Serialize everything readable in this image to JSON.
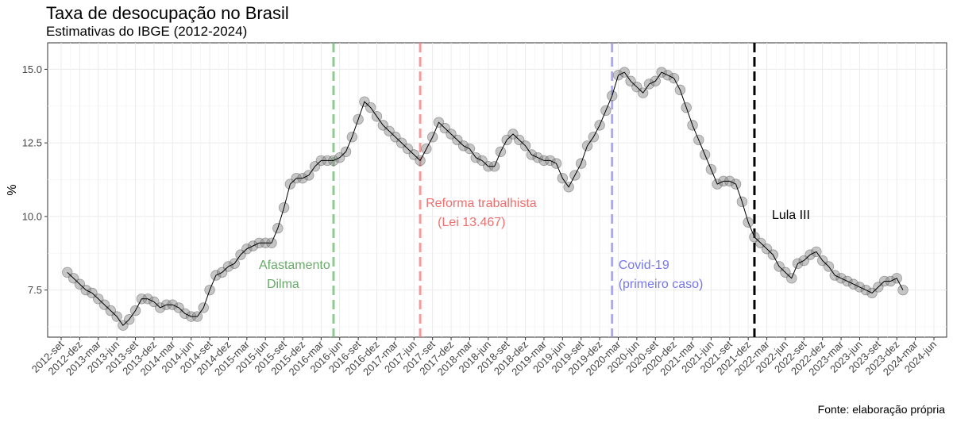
{
  "chart_data": {
    "type": "line",
    "title": "Taxa de desocupação no Brasil",
    "subtitle": "Estimativas do IBGE (2012-2024)",
    "xlabel": "",
    "ylabel": "%",
    "source": "Fonte: elaboração própria",
    "ylim": [
      5.9,
      15.9
    ],
    "yticks": [
      7.5,
      10.0,
      12.5,
      15.0
    ],
    "ytick_labels": [
      "7.5",
      "10.0",
      "12.5",
      "15.0"
    ],
    "grid": true,
    "point_color": "#808080",
    "line_color": "#000000",
    "x_ticks": [
      "2012-set",
      "2012-dez",
      "2013-mar",
      "2013-jun",
      "2013-set",
      "2013-dez",
      "2014-mar",
      "2014-jun",
      "2014-set",
      "2014-dez",
      "2015-mar",
      "2015-jun",
      "2015-set",
      "2015-dez",
      "2016-mar",
      "2016-jun",
      "2016-set",
      "2016-dez",
      "2017-mar",
      "2017-jun",
      "2017-set",
      "2017-dez",
      "2018-mar",
      "2018-jun",
      "2018-set",
      "2018-dez",
      "2019-mar",
      "2019-jun",
      "2019-set",
      "2019-dez",
      "2020-mar",
      "2020-jun",
      "2020-set",
      "2020-dez",
      "2021-mar",
      "2021-jun",
      "2021-set",
      "2021-dez",
      "2022-mar",
      "2022-jun",
      "2022-set",
      "2022-dez",
      "2023-mar",
      "2023-jun",
      "2023-set",
      "2023-dez",
      "2024-mar",
      "2024-jun"
    ],
    "x_start": "2012-10",
    "series": [
      {
        "name": "",
        "values": [
          8.1,
          7.9,
          7.7,
          7.5,
          7.4,
          7.2,
          7.0,
          6.8,
          6.6,
          6.3,
          6.5,
          6.8,
          7.2,
          7.2,
          7.1,
          6.9,
          7.0,
          7.0,
          6.9,
          6.7,
          6.6,
          6.6,
          6.9,
          7.5,
          8.0,
          8.1,
          8.3,
          8.4,
          8.7,
          8.9,
          9.0,
          9.1,
          9.1,
          9.1,
          9.6,
          10.3,
          11.1,
          11.3,
          11.3,
          11.4,
          11.7,
          11.9,
          11.9,
          11.9,
          12.0,
          12.2,
          12.7,
          13.3,
          13.9,
          13.7,
          13.4,
          13.1,
          12.9,
          12.7,
          12.5,
          12.3,
          12.1,
          11.9,
          12.3,
          12.7,
          13.2,
          13.0,
          12.8,
          12.6,
          12.4,
          12.3,
          12.0,
          11.9,
          11.7,
          11.7,
          12.2,
          12.6,
          12.8,
          12.6,
          12.4,
          12.1,
          12.0,
          11.9,
          11.9,
          11.8,
          11.3,
          11.0,
          11.4,
          11.8,
          12.4,
          12.7,
          13.1,
          13.6,
          14.1,
          14.8,
          14.9,
          14.6,
          14.4,
          14.2,
          14.5,
          14.6,
          14.9,
          14.8,
          14.7,
          14.3,
          13.7,
          13.1,
          12.6,
          12.1,
          11.6,
          11.1,
          11.2,
          11.2,
          11.1,
          10.5,
          9.8,
          9.3,
          9.1,
          8.9,
          8.7,
          8.3,
          8.1,
          7.9,
          8.4,
          8.5,
          8.7,
          8.8,
          8.5,
          8.3,
          8.0,
          7.9,
          7.8,
          7.7,
          7.6,
          7.5,
          7.4,
          7.6,
          7.8,
          7.8,
          7.9,
          7.5
        ]
      }
    ],
    "annotations": [
      {
        "label": "Afastamento",
        "label2": "Dilma",
        "date": "2016-05",
        "color": "#7fbf7f",
        "text_color": "#6aaa6a"
      },
      {
        "label": "Reforma trabalhista",
        "label2": "(Lei 13.467)",
        "date": "2017-07",
        "color": "#f08a8a",
        "text_color": "#ee6f6f"
      },
      {
        "label": "Covid-19",
        "label2": "(primeiro caso)",
        "date": "2020-02",
        "color": "#9c9cf0",
        "text_color": "#7777ee"
      },
      {
        "label": "Lula III",
        "label2": "",
        "date": "2022-01",
        "color": "#000000",
        "text_color": "#000000"
      }
    ]
  }
}
